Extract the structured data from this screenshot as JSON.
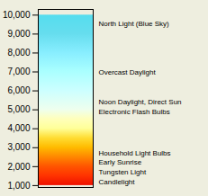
{
  "chart_data": {
    "type": "gradient",
    "ylim": [
      900,
      10300
    ],
    "yticks": [
      {
        "value": 1000,
        "label": "1,000"
      },
      {
        "value": 2000,
        "label": "2,000"
      },
      {
        "value": 3000,
        "label": "3,000"
      },
      {
        "value": 4000,
        "label": "4,000"
      },
      {
        "value": 5000,
        "label": "5,000"
      },
      {
        "value": 6000,
        "label": "6,000"
      },
      {
        "value": 7000,
        "label": "7,000"
      },
      {
        "value": 8000,
        "label": "8,000"
      },
      {
        "value": 9000,
        "label": "9,000"
      },
      {
        "value": 10000,
        "label": "10,000"
      }
    ],
    "stops": [
      {
        "value": 1000,
        "color": "#ee1100"
      },
      {
        "value": 1500,
        "color": "#ff3300"
      },
      {
        "value": 2000,
        "color": "#ff5500"
      },
      {
        "value": 2500,
        "color": "#ff8800"
      },
      {
        "value": 3000,
        "color": "#ffbb00"
      },
      {
        "value": 3500,
        "color": "#ffdd33"
      },
      {
        "value": 4000,
        "color": "#ffff99"
      },
      {
        "value": 4500,
        "color": "#ffffbb"
      },
      {
        "value": 5000,
        "color": "#eeffee"
      },
      {
        "value": 6000,
        "color": "#ccffff"
      },
      {
        "value": 7000,
        "color": "#aaffff"
      },
      {
        "value": 8000,
        "color": "#88eeff"
      },
      {
        "value": 9000,
        "color": "#66ddee"
      },
      {
        "value": 10000,
        "color": "#55ddee"
      }
    ],
    "annotations": [
      {
        "y": 9600,
        "text": "North Light (Blue Sky)"
      },
      {
        "y": 7000,
        "text": "Overcast Daylight"
      },
      {
        "y": 5200,
        "text": "Noon Daylight, Direct Sun\nElectronic Flash Bulbs"
      },
      {
        "y": 2000,
        "text": "Household Light Bulbs\nEarly Sunrise\nTungsten Light\nCandlelight"
      }
    ],
    "tick_labels": "y",
    "background_color": "#eeeedf"
  }
}
